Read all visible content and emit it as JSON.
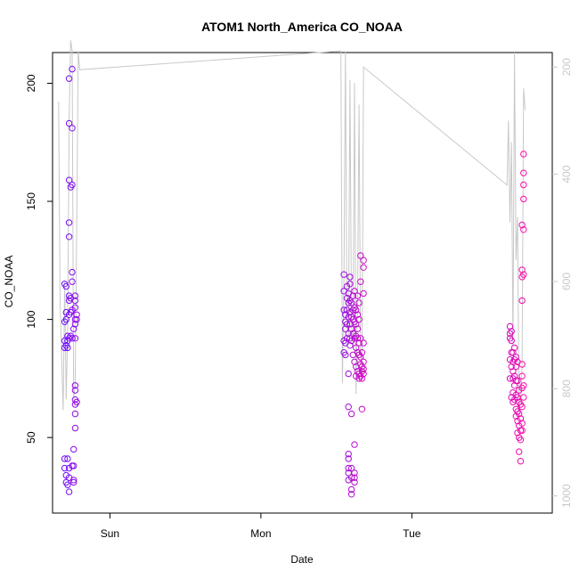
{
  "chart_data": {
    "type": "scatter",
    "title": "ATOM1 North_America CO_NOAA",
    "xlabel": "Date",
    "ylabel": "CO_NOAA",
    "x_ticks": [
      "Sun",
      "Mon",
      "Tue"
    ],
    "y_ticks": [
      "50",
      "100",
      "150",
      "200"
    ],
    "y2_ticks": [
      "200",
      "400",
      "600",
      "800",
      "1000"
    ],
    "xlim_days": [
      -0.38,
      2.93
    ],
    "ylim": [
      18,
      213
    ],
    "y2lim_inverted": [
      1032,
      173
    ],
    "colors": {
      "start": "#6a0dff",
      "end": "#ff0aa5",
      "line": "#c8c8c8"
    },
    "series": [
      {
        "values": [
          [
            -0.3,
            88
          ],
          [
            -0.3,
            91
          ],
          [
            -0.3,
            99
          ],
          [
            -0.3,
            115
          ],
          [
            -0.3,
            41
          ],
          [
            -0.3,
            37
          ],
          [
            -0.29,
            89
          ],
          [
            -0.29,
            100
          ],
          [
            -0.29,
            114
          ],
          [
            -0.29,
            103
          ],
          [
            -0.29,
            34
          ],
          [
            -0.29,
            31
          ],
          [
            -0.28,
            91
          ],
          [
            -0.28,
            93
          ],
          [
            -0.28,
            88
          ],
          [
            -0.28,
            41
          ],
          [
            -0.28,
            30
          ],
          [
            -0.27,
            92
          ],
          [
            -0.27,
            110
          ],
          [
            -0.27,
            102
          ],
          [
            -0.27,
            108
          ],
          [
            -0.27,
            202
          ],
          [
            -0.27,
            183
          ],
          [
            -0.27,
            159
          ],
          [
            -0.27,
            141
          ],
          [
            -0.27,
            135
          ],
          [
            -0.27,
            27
          ],
          [
            -0.27,
            33
          ],
          [
            -0.27,
            37
          ],
          [
            -0.26,
            156
          ],
          [
            -0.26,
            109
          ],
          [
            -0.26,
            103
          ],
          [
            -0.26,
            93
          ],
          [
            -0.25,
            206
          ],
          [
            -0.25,
            181
          ],
          [
            -0.25,
            157
          ],
          [
            -0.25,
            120
          ],
          [
            -0.25,
            116
          ],
          [
            -0.25,
            104
          ],
          [
            -0.25,
            92
          ],
          [
            -0.25,
            38
          ],
          [
            -0.24,
            96
          ],
          [
            -0.24,
            45
          ],
          [
            -0.24,
            31
          ],
          [
            -0.24,
            32
          ],
          [
            -0.24,
            38
          ],
          [
            -0.23,
            110
          ],
          [
            -0.23,
            108
          ],
          [
            -0.23,
            105
          ],
          [
            -0.23,
            100
          ],
          [
            -0.23,
            98
          ],
          [
            -0.23,
            92
          ],
          [
            -0.23,
            72
          ],
          [
            -0.23,
            70
          ],
          [
            -0.23,
            66
          ],
          [
            -0.23,
            64
          ],
          [
            -0.23,
            60
          ],
          [
            -0.23,
            54
          ],
          [
            -0.22,
            102
          ],
          [
            -0.22,
            100
          ],
          [
            -0.22,
            65
          ],
          [
            1.55,
            119
          ],
          [
            1.55,
            112
          ],
          [
            1.55,
            104
          ],
          [
            1.55,
            91
          ],
          [
            1.55,
            86
          ],
          [
            1.56,
            102
          ],
          [
            1.56,
            99
          ],
          [
            1.56,
            96
          ],
          [
            1.56,
            90
          ],
          [
            1.56,
            85
          ],
          [
            1.57,
            114
          ],
          [
            1.57,
            109
          ],
          [
            1.57,
            104
          ],
          [
            1.57,
            98
          ],
          [
            1.57,
            92
          ],
          [
            1.58,
            111
          ],
          [
            1.58,
            107
          ],
          [
            1.58,
            101
          ],
          [
            1.58,
            94
          ],
          [
            1.58,
            77
          ],
          [
            1.58,
            63
          ],
          [
            1.58,
            43
          ],
          [
            1.58,
            41
          ],
          [
            1.58,
            37
          ],
          [
            1.58,
            35
          ],
          [
            1.58,
            32
          ],
          [
            1.59,
            118
          ],
          [
            1.59,
            115
          ],
          [
            1.59,
            108
          ],
          [
            1.59,
            103
          ],
          [
            1.59,
            98
          ],
          [
            1.59,
            92
          ],
          [
            1.59,
            89
          ],
          [
            1.6,
            107
          ],
          [
            1.6,
            101
          ],
          [
            1.6,
            96
          ],
          [
            1.6,
            91
          ],
          [
            1.6,
            60
          ],
          [
            1.6,
            37
          ],
          [
            1.6,
            33
          ],
          [
            1.6,
            28
          ],
          [
            1.6,
            26
          ],
          [
            1.61,
            110
          ],
          [
            1.61,
            104
          ],
          [
            1.61,
            100
          ],
          [
            1.61,
            94
          ],
          [
            1.61,
            85
          ],
          [
            1.62,
            112
          ],
          [
            1.62,
            105
          ],
          [
            1.62,
            99
          ],
          [
            1.62,
            92
          ],
          [
            1.62,
            82
          ],
          [
            1.62,
            47
          ],
          [
            1.62,
            35
          ],
          [
            1.62,
            33
          ],
          [
            1.62,
            31
          ],
          [
            1.63,
            104
          ],
          [
            1.63,
            98
          ],
          [
            1.63,
            93
          ],
          [
            1.63,
            88
          ],
          [
            1.63,
            80
          ],
          [
            1.63,
            76
          ],
          [
            1.64,
            110
          ],
          [
            1.64,
            102
          ],
          [
            1.64,
            96
          ],
          [
            1.64,
            92
          ],
          [
            1.64,
            86
          ],
          [
            1.64,
            78
          ],
          [
            1.65,
            107
          ],
          [
            1.65,
            100
          ],
          [
            1.65,
            90
          ],
          [
            1.65,
            85
          ],
          [
            1.65,
            77
          ],
          [
            1.65,
            75
          ],
          [
            1.66,
            127
          ],
          [
            1.66,
            116
          ],
          [
            1.66,
            92
          ],
          [
            1.66,
            84
          ],
          [
            1.66,
            81
          ],
          [
            1.66,
            76
          ],
          [
            1.67,
            86
          ],
          [
            1.67,
            80
          ],
          [
            1.67,
            78
          ],
          [
            1.67,
            75
          ],
          [
            1.67,
            62
          ],
          [
            1.68,
            125
          ],
          [
            1.68,
            122
          ],
          [
            1.68,
            111
          ],
          [
            1.68,
            90
          ],
          [
            1.68,
            82
          ],
          [
            1.68,
            79
          ],
          [
            1.68,
            77
          ],
          [
            2.65,
            97
          ],
          [
            2.65,
            94
          ],
          [
            2.65,
            92
          ],
          [
            2.65,
            83
          ],
          [
            2.65,
            75
          ],
          [
            2.66,
            95
          ],
          [
            2.66,
            91
          ],
          [
            2.66,
            86
          ],
          [
            2.66,
            80
          ],
          [
            2.66,
            67
          ],
          [
            2.67,
            86
          ],
          [
            2.67,
            82
          ],
          [
            2.67,
            78
          ],
          [
            2.67,
            75
          ],
          [
            2.67,
            69
          ],
          [
            2.67,
            65
          ],
          [
            2.68,
            88
          ],
          [
            2.68,
            83
          ],
          [
            2.68,
            76
          ],
          [
            2.68,
            72
          ],
          [
            2.68,
            66
          ],
          [
            2.69,
            84
          ],
          [
            2.69,
            80
          ],
          [
            2.69,
            74
          ],
          [
            2.69,
            68
          ],
          [
            2.69,
            62
          ],
          [
            2.69,
            59
          ],
          [
            2.7,
            82
          ],
          [
            2.7,
            74
          ],
          [
            2.7,
            67
          ],
          [
            2.7,
            61
          ],
          [
            2.7,
            57
          ],
          [
            2.7,
            52
          ],
          [
            2.71,
            70
          ],
          [
            2.71,
            65
          ],
          [
            2.71,
            60
          ],
          [
            2.71,
            55
          ],
          [
            2.71,
            50
          ],
          [
            2.71,
            44
          ],
          [
            2.72,
            64
          ],
          [
            2.72,
            58
          ],
          [
            2.72,
            53
          ],
          [
            2.72,
            49
          ],
          [
            2.72,
            40
          ],
          [
            2.73,
            140
          ],
          [
            2.73,
            121
          ],
          [
            2.73,
            118
          ],
          [
            2.73,
            108
          ],
          [
            2.73,
            81
          ],
          [
            2.73,
            76
          ],
          [
            2.73,
            71
          ],
          [
            2.73,
            63
          ],
          [
            2.73,
            56
          ],
          [
            2.73,
            53
          ],
          [
            2.74,
            170
          ],
          [
            2.74,
            162
          ],
          [
            2.74,
            157
          ],
          [
            2.74,
            151
          ],
          [
            2.74,
            138
          ],
          [
            2.74,
            119
          ],
          [
            2.74,
            72
          ],
          [
            2.74,
            67
          ]
        ]
      }
    ],
    "line": {
      "points": [
        [
          -0.34,
          265
        ],
        [
          -0.33,
          640
        ],
        [
          -0.32,
          740
        ],
        [
          -0.31,
          840
        ],
        [
          -0.3,
          600
        ],
        [
          -0.29,
          820
        ],
        [
          -0.28,
          700
        ],
        [
          -0.27,
          300
        ],
        [
          -0.26,
          150
        ],
        [
          -0.25,
          170
        ],
        [
          -0.24,
          820
        ],
        [
          -0.23,
          790
        ],
        [
          -0.22,
          500
        ],
        [
          -0.21,
          170
        ],
        [
          -0.2,
          205
        ],
        [
          1.53,
          170
        ],
        [
          1.54,
          790
        ],
        [
          1.55,
          600
        ],
        [
          1.56,
          170
        ],
        [
          1.57,
          680
        ],
        [
          1.58,
          700
        ],
        [
          1.59,
          225
        ],
        [
          1.6,
          680
        ],
        [
          1.61,
          720
        ],
        [
          1.62,
          230
        ],
        [
          1.63,
          810
        ],
        [
          1.64,
          640
        ],
        [
          1.65,
          270
        ],
        [
          1.66,
          720
        ],
        [
          1.67,
          780
        ],
        [
          1.68,
          200
        ],
        [
          2.63,
          420
        ],
        [
          2.64,
          300
        ],
        [
          2.65,
          490
        ],
        [
          2.66,
          340
        ],
        [
          2.67,
          720
        ],
        [
          2.68,
          173
        ],
        [
          2.69,
          560
        ],
        [
          2.7,
          480
        ],
        [
          2.71,
          840
        ],
        [
          2.72,
          820
        ],
        [
          2.73,
          760
        ],
        [
          2.74,
          240
        ],
        [
          2.75,
          280
        ]
      ]
    },
    "grid": false,
    "legend": "none"
  }
}
